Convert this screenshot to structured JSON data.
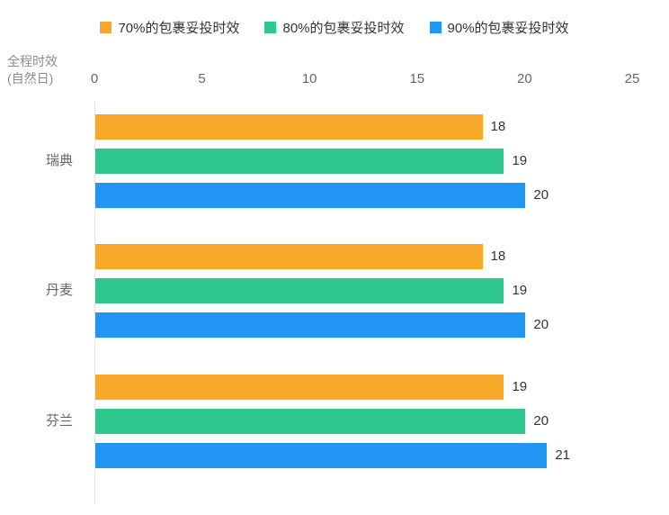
{
  "axis": {
    "title_line1": "全程时效",
    "title_line2": "(自然日)"
  },
  "chart_data": {
    "type": "bar",
    "orientation": "horizontal",
    "title": "",
    "categories": [
      "瑞典",
      "丹麦",
      "芬兰"
    ],
    "series": [
      {
        "name": "70%的包裹妥投时效",
        "color": "#F7A829",
        "values": [
          18,
          18,
          19
        ]
      },
      {
        "name": "80%的包裹妥投时效",
        "color": "#2FC98F",
        "values": [
          19,
          19,
          20
        ]
      },
      {
        "name": "90%的包裹妥投时效",
        "color": "#2196F3",
        "values": [
          20,
          20,
          21
        ]
      }
    ],
    "xlabel": "",
    "ylabel": "全程时效(自然日)",
    "xlim": [
      0,
      25
    ],
    "x_ticks": [
      0,
      5,
      10,
      15,
      20,
      25
    ],
    "legend_position": "top",
    "grid": false,
    "data_labels": true
  }
}
